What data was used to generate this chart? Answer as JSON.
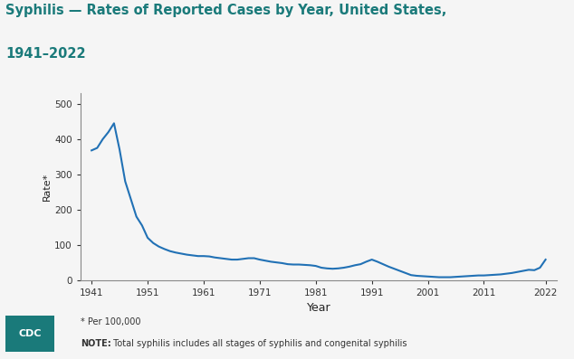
{
  "title_line1": "Syphilis — Rates of Reported Cases by Year, United States,",
  "title_line2": "1941–2022",
  "xlabel": "Year",
  "ylabel": "Rate*",
  "footnote1": "* Per 100,000",
  "footnote2_bold": "NOTE:",
  "footnote2_rest": " Total syphilis includes all stages of syphilis and congenital syphilis",
  "line_color": "#2171b5",
  "background_color": "#f0f0f0",
  "title_color": "#1a7a7a",
  "xlim": [
    1939,
    2024
  ],
  "ylim": [
    0,
    530
  ],
  "yticks": [
    0,
    100,
    200,
    300,
    400,
    500
  ],
  "xticks": [
    1941,
    1951,
    1961,
    1971,
    1981,
    1991,
    2001,
    2011,
    2022
  ],
  "years": [
    1941,
    1942,
    1943,
    1944,
    1945,
    1946,
    1947,
    1948,
    1949,
    1950,
    1951,
    1952,
    1953,
    1954,
    1955,
    1956,
    1957,
    1958,
    1959,
    1960,
    1961,
    1962,
    1963,
    1964,
    1965,
    1966,
    1967,
    1968,
    1969,
    1970,
    1971,
    1972,
    1973,
    1974,
    1975,
    1976,
    1977,
    1978,
    1979,
    1980,
    1981,
    1982,
    1983,
    1984,
    1985,
    1986,
    1987,
    1988,
    1989,
    1990,
    1991,
    1992,
    1993,
    1994,
    1995,
    1996,
    1997,
    1998,
    1999,
    2000,
    2001,
    2002,
    2003,
    2004,
    2005,
    2006,
    2007,
    2008,
    2009,
    2010,
    2011,
    2012,
    2013,
    2014,
    2015,
    2016,
    2017,
    2018,
    2019,
    2020,
    2021,
    2022
  ],
  "rates": [
    368,
    375,
    400,
    420,
    445,
    370,
    280,
    230,
    180,
    155,
    120,
    105,
    95,
    88,
    82,
    78,
    75,
    72,
    70,
    68,
    68,
    67,
    64,
    62,
    60,
    58,
    58,
    60,
    62,
    62,
    58,
    55,
    52,
    50,
    48,
    45,
    44,
    44,
    43,
    42,
    40,
    35,
    33,
    32,
    33,
    35,
    38,
    42,
    45,
    52,
    58,
    52,
    45,
    38,
    32,
    26,
    20,
    14,
    12,
    11,
    10,
    9,
    8,
    8,
    8,
    9,
    10,
    11,
    12,
    13,
    13,
    14,
    15,
    16,
    18,
    20,
    23,
    26,
    29,
    28,
    35,
    58
  ],
  "cdc_box_color": "#1a7a7a",
  "spine_color": "#888888",
  "tick_label_color": "#333333",
  "footnote_color": "#333333"
}
